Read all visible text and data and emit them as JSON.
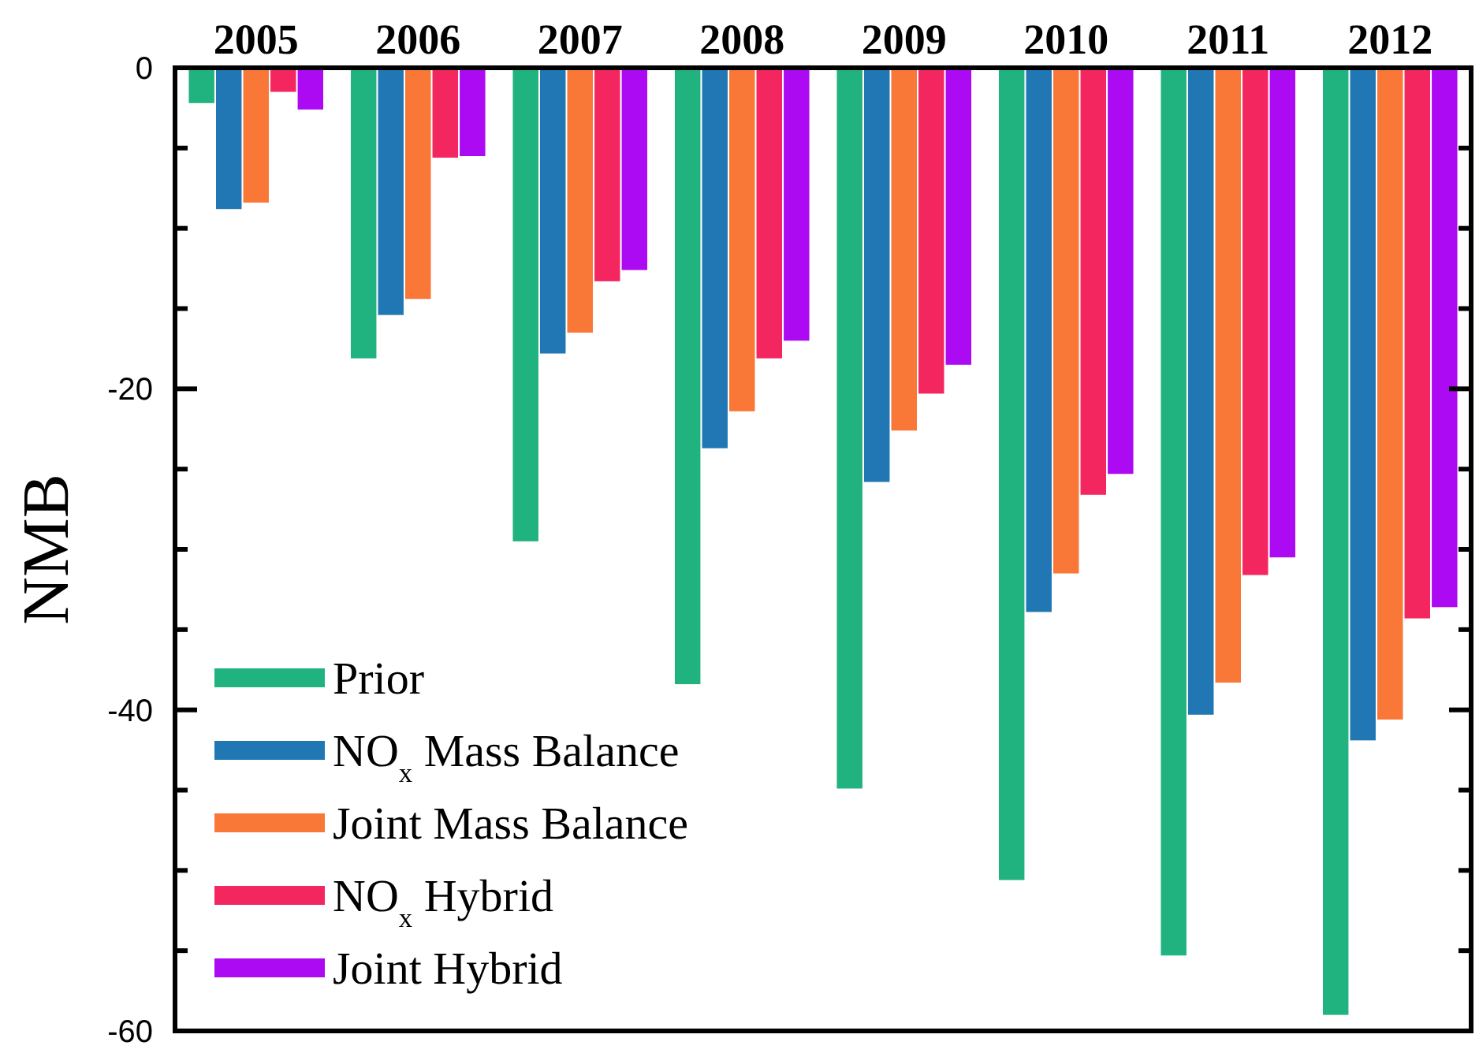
{
  "chart_data": {
    "type": "bar",
    "ylabel": "NMB",
    "categories": [
      "2005",
      "2006",
      "2007",
      "2008",
      "2009",
      "2010",
      "2011",
      "2012"
    ],
    "series": [
      {
        "name": "Prior",
        "color": "#20b27f",
        "values": [
          -2.2,
          -18.1,
          -29.5,
          -38.4,
          -44.9,
          -50.6,
          -55.3,
          -59.0
        ]
      },
      {
        "name": "NO$_{x}$ Mass Balance",
        "color": "#2077b4",
        "values": [
          -8.8,
          -15.4,
          -17.8,
          -23.7,
          -25.8,
          -33.9,
          -40.3,
          -41.9
        ]
      },
      {
        "name": "Joint Mass Balance",
        "color": "#f97737",
        "values": [
          -8.4,
          -14.4,
          -16.5,
          -21.4,
          -22.6,
          -31.5,
          -38.3,
          -40.6
        ]
      },
      {
        "name": "NO$_{x}$ Hybrid",
        "color": "#f42660",
        "values": [
          -1.5,
          -5.6,
          -13.3,
          -18.1,
          -20.3,
          -26.6,
          -31.6,
          -34.3
        ]
      },
      {
        "name": "Joint Hybrid",
        "color": "#ad0af4",
        "values": [
          -2.6,
          -5.5,
          -12.6,
          -17.0,
          -18.5,
          -25.3,
          -30.5,
          -33.6
        ]
      }
    ],
    "ylim": [
      -60,
      0
    ],
    "yticks": [
      0,
      {
        "value": -5,
        "label": null
      },
      {
        "value": -10,
        "label": null
      },
      {
        "value": -15,
        "label": null
      },
      -20,
      {
        "value": -25,
        "label": null
      },
      {
        "value": -30,
        "label": null
      },
      {
        "value": -35,
        "label": null
      },
      -40,
      {
        "value": -45,
        "label": null
      },
      {
        "value": -50,
        "label": null
      },
      {
        "value": -55,
        "label": null
      },
      -60
    ],
    "grid": false,
    "legend": "bottom left"
  }
}
